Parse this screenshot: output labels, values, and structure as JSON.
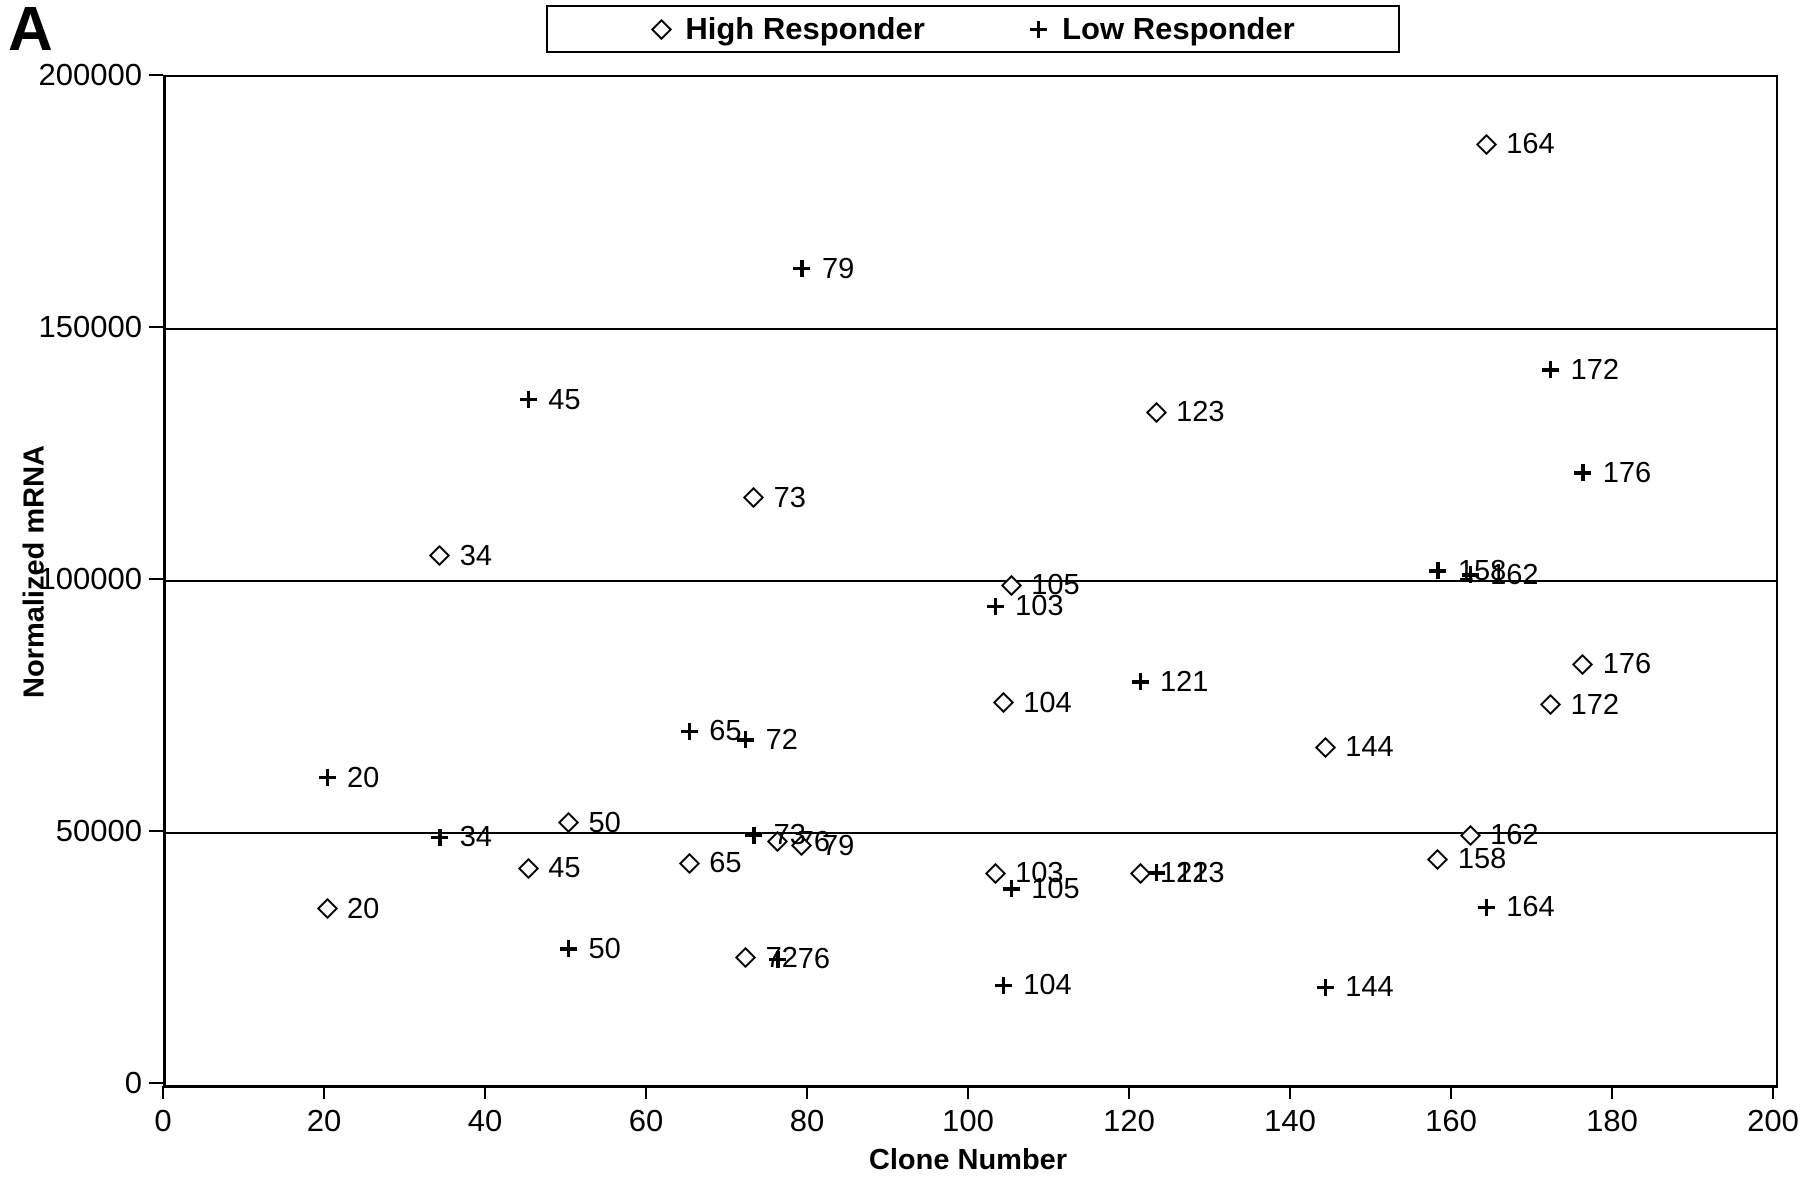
{
  "panel_label": "A",
  "legend": {
    "high_label": "High Responder",
    "low_label": "Low Responder"
  },
  "axes": {
    "x_title": "Clone Number",
    "y_title": "Normalized mRNA",
    "x_tick_labels": [
      "0",
      "20",
      "40",
      "60",
      "80",
      "100",
      "120",
      "140",
      "160",
      "180",
      "200"
    ],
    "x_tick_values": [
      0,
      20,
      40,
      60,
      80,
      100,
      120,
      140,
      160,
      180,
      200
    ],
    "y_tick_labels": [
      "0",
      "50000",
      "100000",
      "150000",
      "200000"
    ],
    "y_tick_values": [
      0,
      50000,
      100000,
      150000,
      200000
    ],
    "gridline_values": [
      50000,
      100000,
      150000
    ]
  },
  "colors": {
    "foreground": "#000000",
    "background": "#ffffff"
  },
  "chart_data": {
    "type": "scatter",
    "title": "",
    "xlabel": "Clone Number",
    "ylabel": "Normalized mRNA",
    "xlim": [
      0,
      200
    ],
    "ylim": [
      0,
      200000
    ],
    "grid": "horizontal",
    "legend_position": "top-center",
    "series": [
      {
        "name": "High Responder",
        "marker": "diamond",
        "points": [
          {
            "x": 20,
            "y": 35000,
            "label": "20"
          },
          {
            "x": 34,
            "y": 105000,
            "label": "34"
          },
          {
            "x": 45,
            "y": 43000,
            "label": "45"
          },
          {
            "x": 50,
            "y": 52000,
            "label": "50"
          },
          {
            "x": 65,
            "y": 44000,
            "label": "65"
          },
          {
            "x": 72,
            "y": 25200,
            "label": "72"
          },
          {
            "x": 73,
            "y": 116500,
            "label": "73"
          },
          {
            "x": 76,
            "y": 48300,
            "label": "76"
          },
          {
            "x": 79,
            "y": 47500,
            "label": "79"
          },
          {
            "x": 103,
            "y": 42000,
            "label": "103"
          },
          {
            "x": 104,
            "y": 75800,
            "label": "104"
          },
          {
            "x": 105,
            "y": 99200,
            "label": "105"
          },
          {
            "x": 121,
            "y": 42000,
            "label": "121"
          },
          {
            "x": 123,
            "y": 133500,
            "label": "123"
          },
          {
            "x": 144,
            "y": 67000,
            "label": "144"
          },
          {
            "x": 158,
            "y": 44800,
            "label": "158"
          },
          {
            "x": 162,
            "y": 49600,
            "label": "162"
          },
          {
            "x": 164,
            "y": 186700,
            "label": "164"
          },
          {
            "x": 172,
            "y": 75400,
            "label": "172"
          },
          {
            "x": 176,
            "y": 83500,
            "label": "176"
          }
        ]
      },
      {
        "name": "Low Responder",
        "marker": "plus",
        "points": [
          {
            "x": 20,
            "y": 61000,
            "label": "20"
          },
          {
            "x": 34,
            "y": 49200,
            "label": "34"
          },
          {
            "x": 45,
            "y": 136000,
            "label": "45"
          },
          {
            "x": 50,
            "y": 27000,
            "label": "50"
          },
          {
            "x": 65,
            "y": 70200,
            "label": "65"
          },
          {
            "x": 72,
            "y": 68500,
            "label": "72"
          },
          {
            "x": 73,
            "y": 49600,
            "label": "73"
          },
          {
            "x": 76,
            "y": 25000,
            "label": "76"
          },
          {
            "x": 79,
            "y": 162000,
            "label": "79"
          },
          {
            "x": 103,
            "y": 95000,
            "label": "103"
          },
          {
            "x": 104,
            "y": 19800,
            "label": "104"
          },
          {
            "x": 105,
            "y": 38900,
            "label": "105"
          },
          {
            "x": 121,
            "y": 80000,
            "label": "121"
          },
          {
            "x": 123,
            "y": 42100,
            "label": "123"
          },
          {
            "x": 144,
            "y": 19400,
            "label": "144"
          },
          {
            "x": 158,
            "y": 102000,
            "label": "158"
          },
          {
            "x": 162,
            "y": 101200,
            "label": "162"
          },
          {
            "x": 164,
            "y": 35300,
            "label": "164"
          },
          {
            "x": 172,
            "y": 141900,
            "label": "172"
          },
          {
            "x": 176,
            "y": 121500,
            "label": "176"
          }
        ]
      }
    ]
  }
}
